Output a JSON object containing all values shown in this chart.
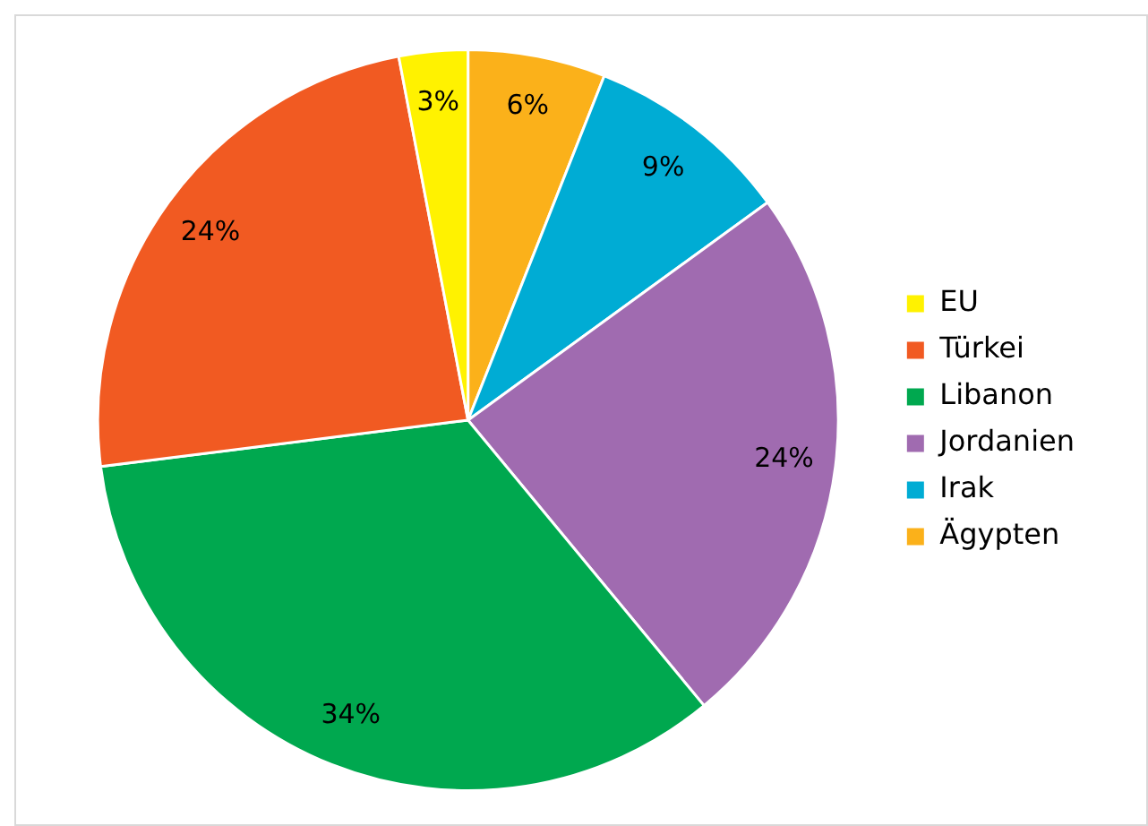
{
  "chart_data": {
    "type": "pie",
    "categories": [
      "Ägypten",
      "Irak",
      "Jordanien",
      "Libanon",
      "Türkei",
      "EU"
    ],
    "values": [
      6,
      9,
      24,
      34,
      24,
      3
    ],
    "value_labels": [
      "6%",
      "9%",
      "24%",
      "34%",
      "24%",
      "3%"
    ],
    "colors": [
      "#fbb11a",
      "#00acd4",
      "#a06bb0",
      "#00a84f",
      "#f15a22",
      "#fff200"
    ],
    "legend": "right"
  }
}
